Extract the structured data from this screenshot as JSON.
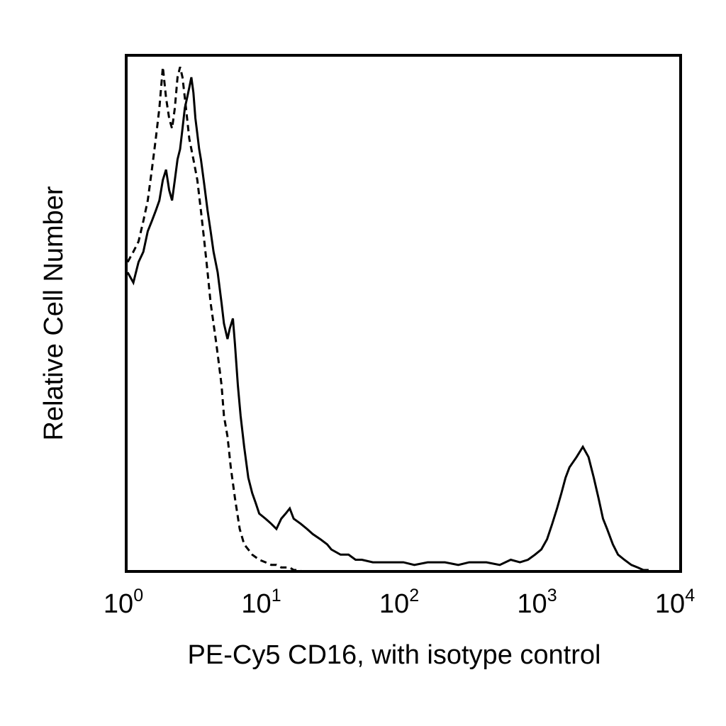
{
  "chart_data": {
    "type": "line",
    "subtype": "flow-cytometry-histogram",
    "xlabel": "PE-Cy5 CD16, with isotype control",
    "ylabel": "Relative Cell Number",
    "xscale": "log",
    "xlim": [
      1,
      10000
    ],
    "ylim": [
      0,
      100
    ],
    "grid": false,
    "legend": "none",
    "x_ticks": [
      {
        "value": 1,
        "base": "10",
        "exp": "0"
      },
      {
        "value": 10,
        "base": "10",
        "exp": "1"
      },
      {
        "value": 100,
        "base": "10",
        "exp": "2"
      },
      {
        "value": 1000,
        "base": "10",
        "exp": "3"
      },
      {
        "value": 10000,
        "base": "10",
        "exp": "4"
      }
    ],
    "series": [
      {
        "style": "solid",
        "color": "#000000",
        "x": [
          1.0,
          1.1,
          1.2,
          1.3,
          1.4,
          1.5,
          1.6,
          1.7,
          1.8,
          1.9,
          2.0,
          2.1,
          2.2,
          2.3,
          2.4,
          2.5,
          2.6,
          2.7,
          2.8,
          2.9,
          3.0,
          3.1,
          3.2,
          3.3,
          3.4,
          3.6,
          3.8,
          4.0,
          4.2,
          4.5,
          4.8,
          5.0,
          5.3,
          5.5,
          5.8,
          6.0,
          6.3,
          6.6,
          7.0,
          7.5,
          8.0,
          8.5,
          9.0,
          10,
          11,
          12,
          13,
          14,
          15,
          16,
          18,
          20,
          22,
          25,
          28,
          30,
          35,
          40,
          45,
          50,
          60,
          70,
          80,
          100,
          120,
          150,
          200,
          250,
          300,
          400,
          500,
          600,
          700,
          800,
          900,
          1000,
          1100,
          1200,
          1300,
          1400,
          1500,
          1600,
          1800,
          2000,
          2200,
          2400,
          2600,
          2800,
          3000,
          3300,
          3600,
          4000,
          4500,
          5000,
          5500,
          6000
        ],
        "y": [
          58,
          56,
          60,
          62,
          66,
          68,
          70,
          72,
          76,
          78,
          74,
          72,
          76,
          80,
          82,
          86,
          90,
          92,
          94,
          96,
          93,
          88,
          85,
          82,
          80,
          75,
          70,
          66,
          62,
          58,
          52,
          48,
          45,
          47,
          49,
          44,
          36,
          30,
          24,
          18,
          15,
          13,
          11,
          10,
          9,
          8,
          10,
          11,
          12,
          10,
          9,
          8,
          7,
          6,
          5,
          4,
          3,
          3,
          2,
          2,
          1.5,
          1.5,
          1.5,
          1.5,
          1,
          1.5,
          1.5,
          1,
          1.5,
          1.5,
          1,
          2,
          1.5,
          2,
          3,
          4,
          6,
          9,
          12,
          15,
          18,
          20,
          22,
          24,
          22,
          18,
          14,
          10,
          8,
          5,
          3,
          2,
          1,
          0.5,
          0,
          0
        ]
      },
      {
        "style": "dashed",
        "color": "#000000",
        "x": [
          1.0,
          1.1,
          1.2,
          1.3,
          1.4,
          1.5,
          1.6,
          1.7,
          1.8,
          1.9,
          2.0,
          2.1,
          2.2,
          2.3,
          2.4,
          2.5,
          2.6,
          2.7,
          2.8,
          3.0,
          3.2,
          3.4,
          3.6,
          3.8,
          4.0,
          4.2,
          4.4,
          4.6,
          4.8,
          5.0,
          5.3,
          5.6,
          6.0,
          6.5,
          7.0,
          7.5,
          8.0,
          9.0,
          10,
          11,
          12,
          13,
          14,
          15,
          16,
          17,
          18
        ],
        "y": [
          60,
          62,
          64,
          68,
          72,
          78,
          84,
          90,
          98,
          92,
          88,
          86,
          90,
          96,
          98,
          96,
          92,
          88,
          84,
          80,
          76,
          70,
          64,
          58,
          52,
          48,
          44,
          40,
          36,
          30,
          26,
          20,
          14,
          8,
          5,
          4,
          3,
          2,
          1.5,
          1,
          1,
          0.5,
          0.5,
          0.5,
          0,
          0,
          0
        ]
      }
    ]
  }
}
